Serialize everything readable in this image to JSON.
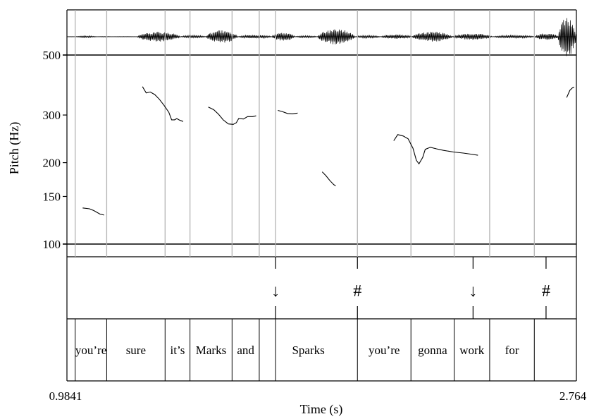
{
  "chart_data": {
    "type": "line",
    "xlabel": "Time (s)",
    "ylabel": "Pitch (Hz)",
    "xlim": [
      0.9841,
      2.764
    ],
    "x_tick_labels": [
      "0.9841",
      "2.764"
    ],
    "ylim": [
      95,
      500
    ],
    "y_scale": "log",
    "y_ticks": [
      100,
      150,
      200,
      300,
      500
    ],
    "y_tick_labels": [
      "100",
      "150",
      "200",
      "300",
      "500"
    ],
    "grid": "vertical lines at word and tone boundaries",
    "boundaries": [
      1.013,
      1.123,
      1.327,
      1.414,
      1.561,
      1.656,
      1.713,
      1.999,
      2.186,
      2.337,
      2.461,
      2.617
    ],
    "series": [
      {
        "values": [
          [
            1.039,
            136
          ],
          [
            1.063,
            135
          ],
          [
            1.078,
            133
          ],
          [
            1.1,
            129
          ],
          [
            1.114,
            128
          ]
        ]
      },
      {
        "values": [
          [
            1.248,
            382
          ],
          [
            1.261,
            362
          ],
          [
            1.275,
            365
          ],
          [
            1.291,
            357
          ],
          [
            1.307,
            343
          ],
          [
            1.323,
            326
          ],
          [
            1.34,
            307
          ],
          [
            1.35,
            288
          ],
          [
            1.36,
            288
          ],
          [
            1.368,
            291
          ],
          [
            1.378,
            287
          ],
          [
            1.39,
            284
          ]
        ]
      },
      {
        "values": [
          [
            1.478,
            321
          ],
          [
            1.497,
            314
          ],
          [
            1.514,
            302
          ],
          [
            1.53,
            288
          ],
          [
            1.548,
            278
          ],
          [
            1.565,
            277
          ],
          [
            1.576,
            281
          ],
          [
            1.584,
            291
          ],
          [
            1.601,
            290
          ],
          [
            1.615,
            296
          ],
          [
            1.633,
            296
          ],
          [
            1.645,
            298
          ]
        ]
      },
      {
        "values": [
          [
            1.721,
            312
          ],
          [
            1.736,
            309
          ],
          [
            1.755,
            304
          ],
          [
            1.772,
            303
          ],
          [
            1.79,
            305
          ]
        ]
      },
      {
        "values": [
          [
            1.876,
            185
          ],
          [
            1.889,
            179
          ],
          [
            1.902,
            172
          ],
          [
            1.916,
            166
          ],
          [
            1.923,
            164
          ]
        ]
      },
      {
        "values": [
          [
            2.126,
            241
          ],
          [
            2.14,
            254
          ],
          [
            2.159,
            251
          ],
          [
            2.176,
            245
          ],
          [
            2.193,
            226
          ],
          [
            2.205,
            204
          ],
          [
            2.214,
            198
          ],
          [
            2.227,
            209
          ],
          [
            2.236,
            224
          ],
          [
            2.254,
            228
          ],
          [
            2.275,
            225
          ],
          [
            2.3,
            222
          ],
          [
            2.335,
            219
          ],
          [
            2.369,
            217
          ],
          [
            2.395,
            215
          ],
          [
            2.42,
            213
          ]
        ]
      },
      {
        "values": [
          [
            2.73,
            348
          ],
          [
            2.741,
            370
          ],
          [
            2.75,
            378
          ],
          [
            2.756,
            380
          ]
        ]
      }
    ]
  },
  "tiers": {
    "tones": [
      {
        "label": "↓",
        "time": 1.713
      },
      {
        "label": "#",
        "time": 1.999
      },
      {
        "label": "↓",
        "time": 2.403
      },
      {
        "label": "#",
        "time": 2.658
      }
    ],
    "words": [
      "you’re",
      "sure",
      "it’s",
      "Marks",
      "and",
      "Sparks",
      "you’re",
      "gonna",
      "work",
      "for"
    ]
  }
}
